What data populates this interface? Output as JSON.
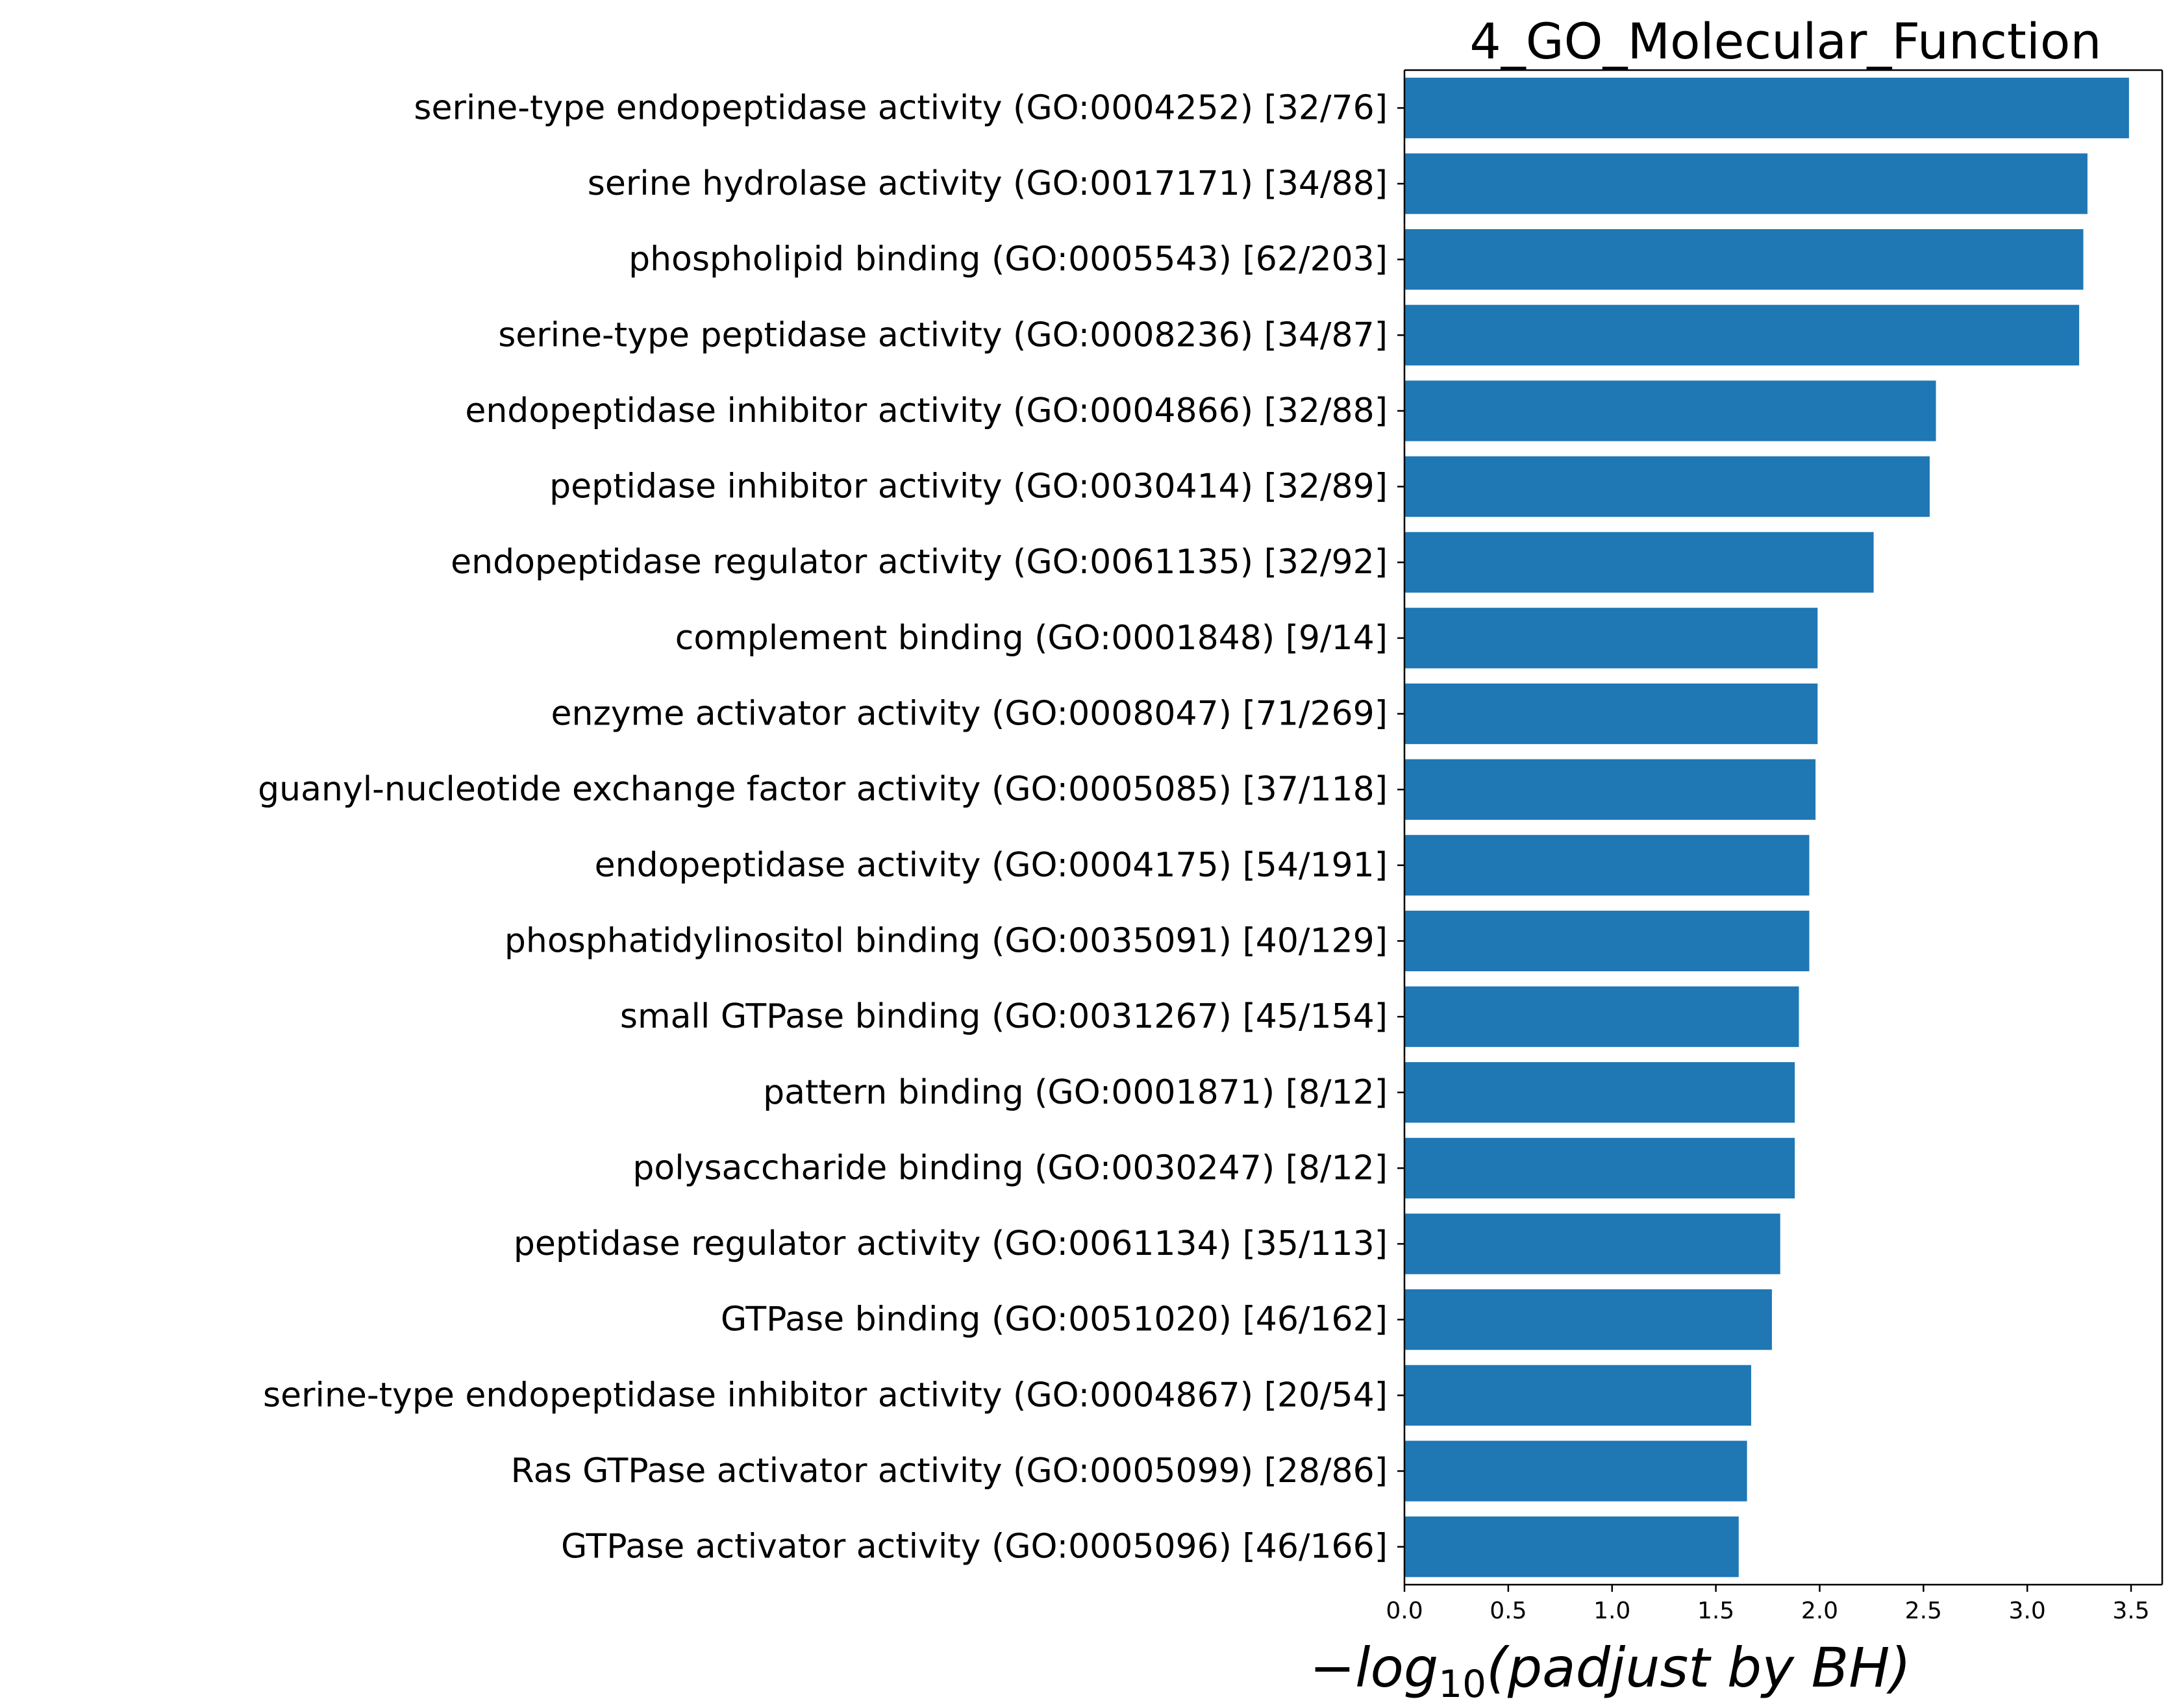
{
  "chart_data": {
    "type": "bar",
    "orientation": "horizontal",
    "title": "4_GO_Molecular_Function",
    "xlabel": "−log10(padjust by BH)",
    "xlabel_parts": {
      "minus": "−",
      "base": "log",
      "subscript": "10",
      "rest": "(padjust by BH)"
    },
    "xlim": [
      0,
      3.65
    ],
    "xticks": [
      0.0,
      0.5,
      1.0,
      1.5,
      2.0,
      2.5,
      3.0,
      3.5
    ],
    "xtick_labels": [
      "0.0",
      "0.5",
      "1.0",
      "1.5",
      "2.0",
      "2.5",
      "3.0",
      "3.5"
    ],
    "grid": false,
    "bar_color": "#1f77b4",
    "categories": [
      "serine-type endopeptidase activity (GO:0004252) [32/76]",
      "serine hydrolase activity (GO:0017171) [34/88]",
      "phospholipid binding (GO:0005543) [62/203]",
      "serine-type peptidase activity (GO:0008236) [34/87]",
      "endopeptidase inhibitor activity (GO:0004866) [32/88]",
      "peptidase inhibitor activity (GO:0030414) [32/89]",
      "endopeptidase regulator activity (GO:0061135) [32/92]",
      "complement binding (GO:0001848) [9/14]",
      "enzyme activator activity (GO:0008047) [71/269]",
      "guanyl-nucleotide exchange factor activity (GO:0005085) [37/118]",
      "endopeptidase activity (GO:0004175) [54/191]",
      "phosphatidylinositol binding (GO:0035091) [40/129]",
      "small GTPase binding (GO:0031267) [45/154]",
      "pattern binding (GO:0001871) [8/12]",
      "polysaccharide binding (GO:0030247) [8/12]",
      "peptidase regulator activity (GO:0061134) [35/113]",
      "GTPase binding (GO:0051020) [46/162]",
      "serine-type endopeptidase inhibitor activity (GO:0004867) [20/54]",
      "Ras GTPase activator activity (GO:0005099) [28/86]",
      "GTPase activator activity (GO:0005096) [46/166]"
    ],
    "values": [
      3.49,
      3.29,
      3.27,
      3.25,
      2.56,
      2.53,
      2.26,
      1.99,
      1.99,
      1.98,
      1.95,
      1.95,
      1.9,
      1.88,
      1.88,
      1.81,
      1.77,
      1.67,
      1.65,
      1.61
    ]
  }
}
